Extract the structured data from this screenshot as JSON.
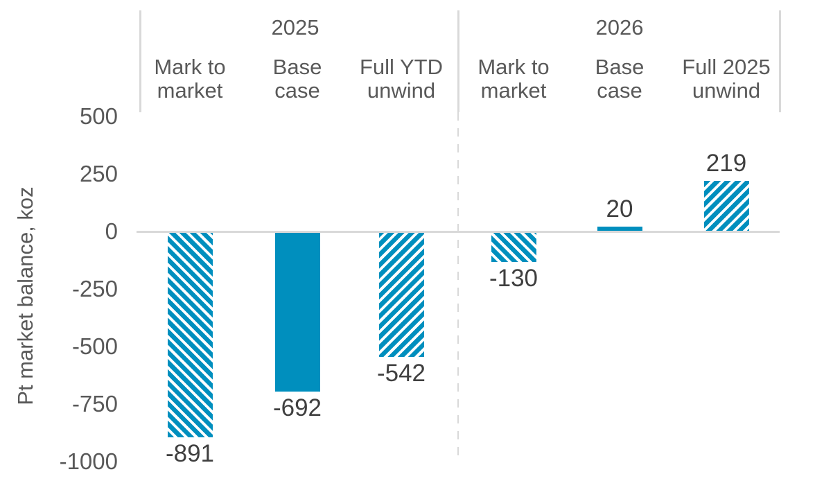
{
  "chart_data": {
    "type": "bar",
    "ylabel": "Pt market balance, koz",
    "ylim": [
      -1000,
      500
    ],
    "yticks": [
      500,
      250,
      0,
      -250,
      -500,
      -750,
      -1000
    ],
    "grid": false,
    "legend": "none",
    "groups": [
      {
        "label": "2025",
        "categories": [
          [
            "Mark to",
            "market"
          ],
          [
            "Base",
            "case"
          ],
          [
            "Full YTD",
            "unwind"
          ]
        ],
        "values": [
          -891,
          -692,
          -542
        ],
        "patterns": [
          "hatch-down",
          "solid",
          "hatch-up"
        ]
      },
      {
        "label": "2026",
        "categories": [
          [
            "Mark to",
            "market"
          ],
          [
            "Base",
            "case"
          ],
          [
            "Full 2025",
            "unwind"
          ]
        ],
        "values": [
          -130,
          20,
          219
        ],
        "patterns": [
          "hatch-down",
          "solid",
          "hatch-up"
        ]
      }
    ],
    "colors": {
      "bar": "#008FBE",
      "gridline": "#D9D9D9",
      "axis_text": "#595959",
      "data_label_text": "#3F3F3F",
      "background": "#FFFFFF"
    }
  }
}
